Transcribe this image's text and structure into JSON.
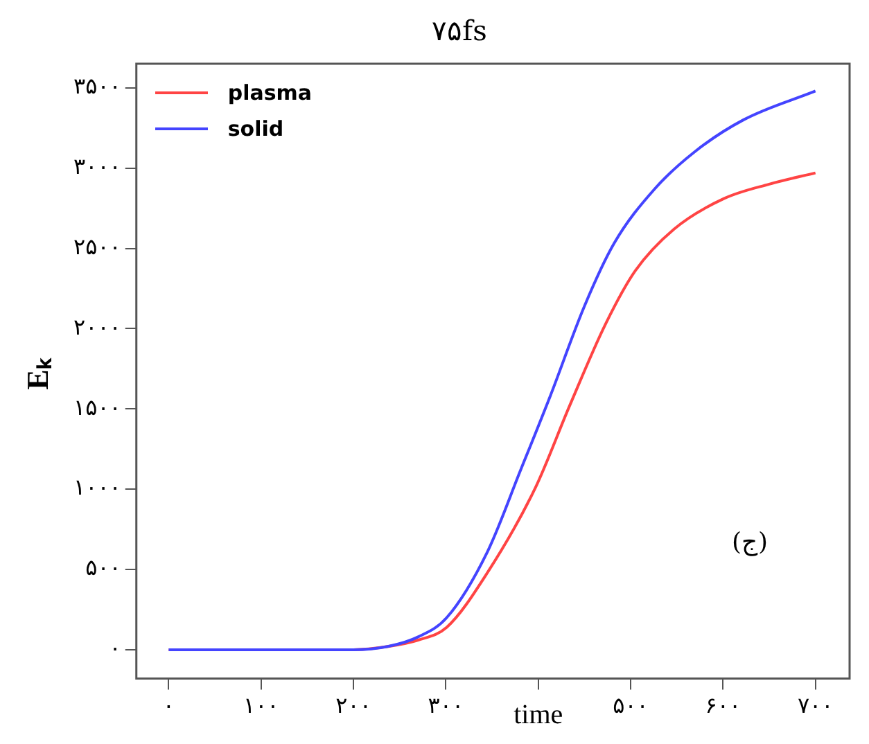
{
  "chart_data": {
    "type": "line",
    "title": "۷۵fs",
    "xlabel": "time",
    "ylabel": "Eₖ",
    "xlim": [
      -35,
      737
    ],
    "ylim": [
      -180,
      3650
    ],
    "xticks": [
      {
        "value": 0,
        "label": "۰"
      },
      {
        "value": 100,
        "label": "۱۰۰"
      },
      {
        "value": 200,
        "label": "۲۰۰"
      },
      {
        "value": 300,
        "label": "۳۰۰"
      },
      {
        "value": 400,
        "label": null
      },
      {
        "value": 500,
        "label": "۵۰۰"
      },
      {
        "value": 600,
        "label": "۶۰۰"
      },
      {
        "value": 700,
        "label": "۷۰۰"
      }
    ],
    "yticks": [
      {
        "value": 0,
        "label": "۰"
      },
      {
        "value": 500,
        "label": "۵۰۰"
      },
      {
        "value": 1000,
        "label": "۱۰۰۰"
      },
      {
        "value": 1500,
        "label": "۱۵۰۰"
      },
      {
        "value": 2000,
        "label": "۲۰۰۰"
      },
      {
        "value": 2500,
        "label": "۲۵۰۰"
      },
      {
        "value": 3000,
        "label": "۳۰۰۰"
      },
      {
        "value": 3500,
        "label": "۳۵۰۰"
      }
    ],
    "series": [
      {
        "name": "plasma",
        "color": "#ff4444",
        "x": [
          0,
          100,
          200,
          237,
          270,
          301,
          345,
          397,
          434,
          473,
          505,
          547,
          601,
          650,
          700
        ],
        "values": [
          0,
          0,
          0,
          20,
          60,
          140,
          480,
          1010,
          1520,
          2030,
          2360,
          2620,
          2810,
          2900,
          2970
        ]
      },
      {
        "name": "solid",
        "color": "#4444ff",
        "x": [
          0,
          100,
          200,
          237,
          270,
          301,
          345,
          381,
          413,
          450,
          482,
          526,
          569,
          622,
          700
        ],
        "values": [
          0,
          0,
          0,
          20,
          80,
          200,
          610,
          1120,
          1580,
          2140,
          2530,
          2870,
          3100,
          3300,
          3480
        ]
      }
    ],
    "annotations": [
      "(ج)"
    ],
    "grid": false,
    "legend": "top left",
    "marker": "none",
    "line_style": "solid"
  }
}
